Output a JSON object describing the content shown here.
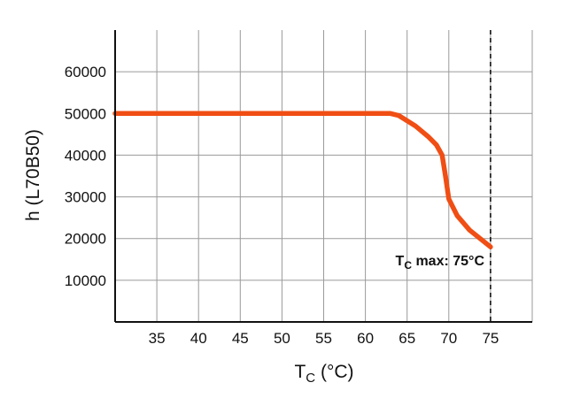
{
  "chart_data": {
    "type": "line",
    "xlabel_main": "T",
    "xlabel_sub": "C",
    "xlabel_unit": " (°C)",
    "ylabel": "h (L70B50)",
    "xlim": [
      30,
      80
    ],
    "ylim": [
      0,
      70000
    ],
    "xticks": [
      35,
      40,
      45,
      50,
      55,
      60,
      65,
      70,
      75
    ],
    "yticks": [
      10000,
      20000,
      30000,
      40000,
      50000,
      60000
    ],
    "ytick_labels": [
      "10000",
      "20000",
      "30000",
      "40000",
      "50000",
      "60000"
    ],
    "grid": true,
    "series": [
      {
        "color": "#f04e14",
        "x": [
          30,
          63,
          64,
          66,
          67.5,
          68.5,
          69.2,
          69.6,
          70.0,
          71,
          72.5,
          75
        ],
        "y": [
          50000,
          50000,
          49500,
          47000,
          44500,
          42500,
          40000,
          35000,
          29500,
          25500,
          22000,
          18000
        ]
      }
    ],
    "reference_line": {
      "x": 75,
      "style": "dashed",
      "color": "#111111"
    },
    "annotation": {
      "main": "T",
      "sub": "C",
      "rest": " max: 75°C"
    }
  }
}
